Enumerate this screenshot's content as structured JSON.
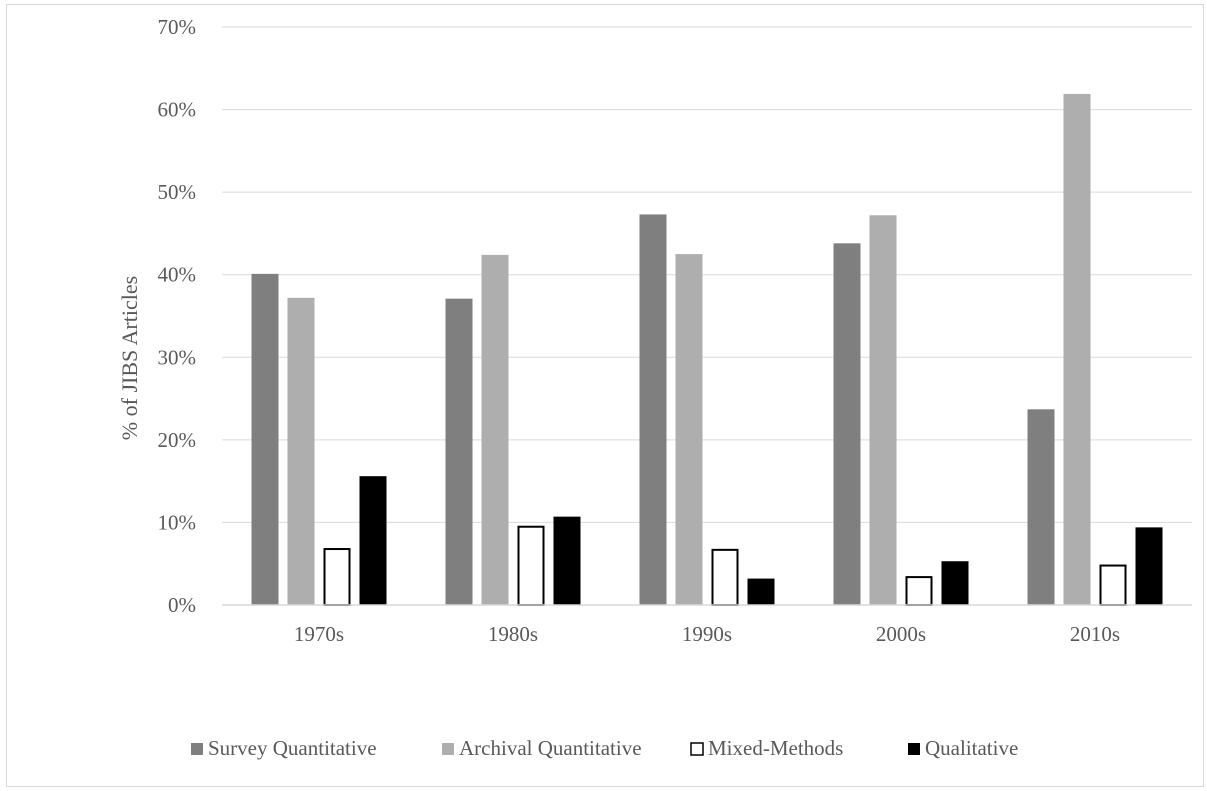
{
  "chart_data": {
    "type": "bar",
    "title": "",
    "xlabel": "",
    "ylabel": "% of JIBS Articles",
    "categories": [
      "1970s",
      "1980s",
      "1990s",
      "2000s",
      "2010s"
    ],
    "ylim": [
      0,
      70
    ],
    "yticks": [
      0,
      10,
      20,
      30,
      40,
      50,
      60,
      70
    ],
    "ytick_labels": [
      "0%",
      "10%",
      "20%",
      "30%",
      "40%",
      "50%",
      "60%",
      "70%"
    ],
    "grid": true,
    "legend_position": "bottom",
    "series": [
      {
        "name": "Survey Quantitative",
        "values": [
          40.1,
          37.1,
          47.3,
          43.8,
          23.7
        ],
        "color": "#7f7f7f",
        "outline": ""
      },
      {
        "name": "Archival Quantitative",
        "values": [
          37.2,
          42.4,
          42.5,
          47.2,
          61.9
        ],
        "color": "#aeaeae",
        "outline": ""
      },
      {
        "name": "Mixed-Methods",
        "values": [
          6.9,
          9.6,
          6.8,
          3.5,
          4.9
        ],
        "color": "#ffffff",
        "outline": "#000000"
      },
      {
        "name": "Qualitative",
        "values": [
          15.6,
          10.7,
          3.2,
          5.3,
          9.4
        ],
        "color": "#000000",
        "outline": ""
      }
    ]
  }
}
